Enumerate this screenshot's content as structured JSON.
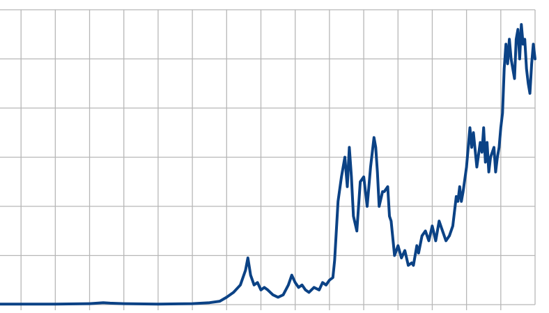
{
  "chart_data": {
    "type": "line",
    "title": "",
    "xlabel": "",
    "ylabel": "",
    "xlim": [
      0,
      16
    ],
    "ylim": [
      0,
      6
    ],
    "x_gridlines": [
      1,
      2,
      3,
      4,
      5,
      6,
      7,
      8,
      9,
      10,
      11,
      12,
      13,
      14,
      15
    ],
    "y_gridlines": [
      0,
      1,
      2,
      3,
      4,
      5,
      6
    ],
    "grid": true,
    "legend": "none",
    "colors": {
      "line": "#0b4285",
      "grid": "#b7b7b7",
      "background": "#ffffff"
    },
    "series": [
      {
        "x": [
          0,
          1,
          2,
          3,
          3.4,
          3.6,
          4,
          5,
          6,
          6.5,
          6.8,
          7.0,
          7.2,
          7.4,
          7.55,
          7.62,
          7.7,
          7.8,
          7.9,
          8.0,
          8.1,
          8.2,
          8.35,
          8.5,
          8.65,
          8.8,
          8.9,
          9.0,
          9.1,
          9.2,
          9.3,
          9.4,
          9.55,
          9.7,
          9.8,
          9.9,
          10.0,
          10.1,
          10.15,
          10.25,
          10.35,
          10.45,
          10.52,
          10.58,
          10.64,
          10.7,
          10.8,
          10.9,
          11.0,
          11.1,
          11.2,
          11.3,
          11.35,
          11.4,
          11.45,
          11.55,
          11.6,
          11.7,
          11.75,
          11.8,
          11.9,
          12.0,
          12.1,
          12.2,
          12.3,
          12.4,
          12.45,
          12.55,
          12.6,
          12.7,
          12.8,
          12.9,
          13.0,
          13.1,
          13.2,
          13.3,
          13.4,
          13.5,
          13.6,
          13.7,
          13.75,
          13.8,
          13.85,
          13.9,
          14.0,
          14.1,
          14.15,
          14.2,
          14.3,
          14.4,
          14.45,
          14.5,
          14.55,
          14.6,
          14.65,
          14.7,
          14.8,
          14.85,
          14.9,
          14.95,
          15.0,
          15.05,
          15.1,
          15.15,
          15.2,
          15.25,
          15.3,
          15.4,
          15.45,
          15.5,
          15.55,
          15.6,
          15.65,
          15.7,
          15.75,
          15.8,
          15.85,
          15.9,
          15.95,
          16.0
        ],
        "y": [
          0.01,
          0.01,
          0.01,
          0.02,
          0.04,
          0.03,
          0.02,
          0.01,
          0.02,
          0.04,
          0.07,
          0.15,
          0.25,
          0.4,
          0.7,
          0.95,
          0.6,
          0.4,
          0.45,
          0.3,
          0.35,
          0.3,
          0.2,
          0.15,
          0.2,
          0.4,
          0.6,
          0.45,
          0.35,
          0.4,
          0.3,
          0.25,
          0.35,
          0.3,
          0.45,
          0.4,
          0.5,
          0.55,
          0.9,
          2.1,
          2.6,
          3.0,
          2.4,
          3.2,
          2.6,
          1.8,
          1.5,
          2.5,
          2.6,
          2.0,
          2.8,
          3.4,
          3.2,
          2.7,
          2.0,
          2.3,
          2.3,
          2.4,
          1.8,
          1.7,
          1.0,
          1.2,
          0.95,
          1.1,
          0.8,
          0.85,
          0.8,
          1.2,
          1.05,
          1.4,
          1.5,
          1.3,
          1.6,
          1.3,
          1.7,
          1.5,
          1.3,
          1.4,
          1.6,
          2.2,
          2.1,
          2.4,
          2.1,
          2.3,
          2.8,
          3.6,
          3.2,
          3.5,
          2.8,
          3.3,
          3.1,
          3.6,
          2.9,
          3.3,
          2.7,
          3.0,
          3.2,
          2.7,
          3.0,
          3.2,
          3.6,
          3.9,
          4.8,
          5.3,
          4.9,
          5.4,
          5.0,
          4.6,
          5.4,
          5.6,
          5.0,
          5.7,
          5.3,
          5.4,
          4.8,
          4.5,
          4.3,
          4.9,
          5.3,
          5.0
        ]
      }
    ]
  }
}
